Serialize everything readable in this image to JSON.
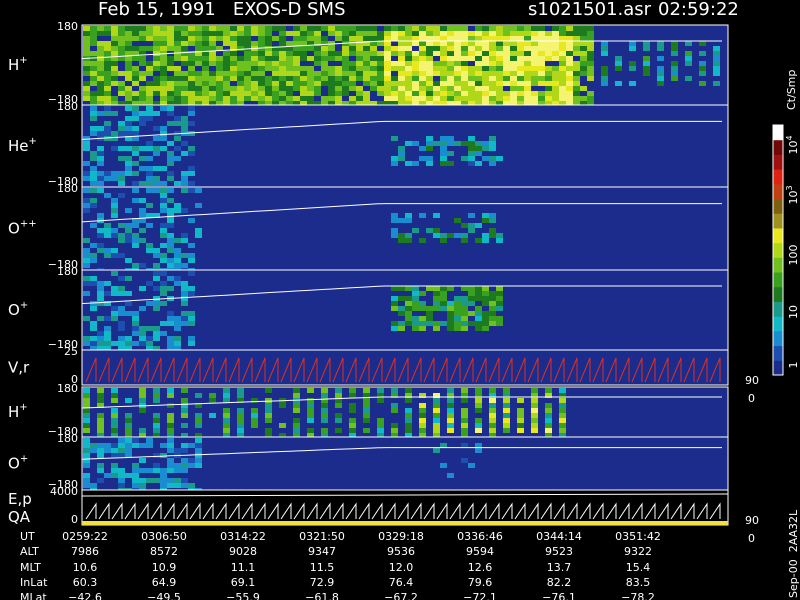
{
  "header": {
    "title": "Feb 15, 1991   EXOS-D SMS",
    "file": "s1021501.asr",
    "time": "02:59:22"
  },
  "panels": [
    {
      "label": {
        "base": "H",
        "sup": "+"
      },
      "ticks": [
        "180",
        "−180"
      ]
    },
    {
      "label": {
        "base": "He",
        "sup": "+"
      },
      "ticks": [
        "180",
        "−180"
      ]
    },
    {
      "label": {
        "base": "O",
        "sup": "++"
      },
      "ticks": [
        "180",
        "−180"
      ]
    },
    {
      "label": {
        "base": "O",
        "sup": "+"
      },
      "ticks": [
        "180",
        "−180"
      ]
    },
    {
      "label": {
        "base": "V,r"
      },
      "ticks": [
        "25",
        "0"
      ],
      "right_ticks": [
        "90",
        "0"
      ]
    },
    {
      "label": {
        "base": "H",
        "sup": "+"
      },
      "ticks": [
        "180",
        "−180"
      ]
    },
    {
      "label": {
        "base": "O",
        "sup": "+"
      },
      "ticks": [
        "180",
        "−180"
      ]
    },
    {
      "label": {
        "base": "E,p"
      },
      "label2": "QA",
      "ticks": [
        "4000",
        "0"
      ],
      "right_ticks": [
        "90",
        "0"
      ]
    }
  ],
  "colorbar": {
    "unit": "Ct/Smp",
    "ticks": [
      {
        "base": "10",
        "sup": "4"
      },
      {
        "base": "10",
        "sup": "3"
      },
      {
        "base": "100"
      },
      {
        "base": "10"
      },
      {
        "base": "1"
      }
    ]
  },
  "table": {
    "rows": [
      {
        "label": "UT",
        "values": [
          "0259:22",
          "0306:50",
          "0314:22",
          "0321:50",
          "0329:18",
          "0336:46",
          "0344:14",
          "0351:42"
        ]
      },
      {
        "label": "ALT",
        "values": [
          "7986",
          "8572",
          "9028",
          "9347",
          "9536",
          "9594",
          "9523",
          "9322"
        ]
      },
      {
        "label": "MLT",
        "values": [
          "10.6",
          "10.9",
          "11.1",
          "11.5",
          "12.0",
          "12.6",
          "13.7",
          "15.4"
        ]
      },
      {
        "label": "InLat",
        "values": [
          "60.3",
          "64.9",
          "69.1",
          "72.9",
          "76.4",
          "79.6",
          "82.2",
          "83.5"
        ]
      },
      {
        "label": "MLat",
        "values": [
          "−42.6",
          "−49.5",
          "−55.9",
          "−61.8",
          "−67.2",
          "−72.1",
          "−76.1",
          "−78.2"
        ]
      }
    ]
  },
  "side_note": "Sep-00  2AA32L"
}
